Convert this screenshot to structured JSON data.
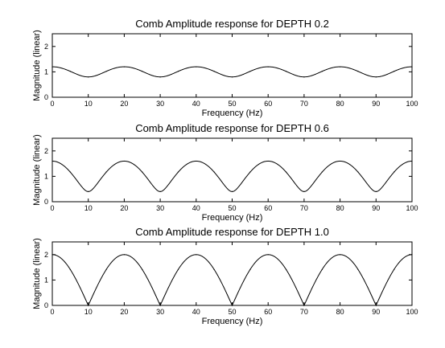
{
  "chart_data": [
    {
      "type": "line",
      "title": "Comb Amplitude response for DEPTH 0.2",
      "xlabel": "Frequency (Hz)",
      "ylabel": "Magnitude (linear)",
      "depth": 0.2,
      "xlim": [
        0,
        100
      ],
      "ylim": [
        0,
        2.5
      ],
      "x_ticks": [
        "0",
        "10",
        "20",
        "30",
        "40",
        "50",
        "60",
        "70",
        "80",
        "90",
        "100"
      ],
      "y_ticks": [
        "0",
        "1",
        "2"
      ],
      "grid": false,
      "line_color": "#000000",
      "series": [
        {
          "x": [
            0,
            5,
            10,
            15,
            20,
            25,
            30,
            35,
            40,
            45,
            50,
            55,
            60,
            65,
            70,
            75,
            80,
            85,
            90,
            95,
            100
          ],
          "values": [
            1.2,
            1.02,
            0.8,
            1.02,
            1.2,
            1.02,
            0.8,
            1.02,
            1.2,
            1.02,
            0.8,
            1.02,
            1.2,
            1.02,
            0.8,
            1.02,
            1.2,
            1.02,
            0.8,
            1.02,
            1.2
          ]
        }
      ]
    },
    {
      "type": "line",
      "title": "Comb Amplitude response for DEPTH 0.6",
      "xlabel": "Frequency (Hz)",
      "ylabel": "Magnitude (linear)",
      "depth": 0.6,
      "xlim": [
        0,
        100
      ],
      "ylim": [
        0,
        2.5
      ],
      "x_ticks": [
        "0",
        "10",
        "20",
        "30",
        "40",
        "50",
        "60",
        "70",
        "80",
        "90",
        "100"
      ],
      "y_ticks": [
        "0",
        "1",
        "2"
      ],
      "grid": false,
      "line_color": "#000000",
      "series": [
        {
          "x": [
            0,
            5,
            10,
            15,
            20,
            25,
            30,
            35,
            40,
            45,
            50,
            55,
            60,
            65,
            70,
            75,
            80,
            85,
            90,
            95,
            100
          ],
          "values": [
            1.6,
            1.17,
            0.4,
            1.17,
            1.6,
            1.17,
            0.4,
            1.17,
            1.6,
            1.17,
            0.4,
            1.17,
            1.6,
            1.17,
            0.4,
            1.17,
            1.6,
            1.17,
            0.4,
            1.17,
            1.6
          ]
        }
      ]
    },
    {
      "type": "line",
      "title": "Comb Amplitude response for DEPTH 1.0",
      "xlabel": "Frequency (Hz)",
      "ylabel": "Magnitude (linear)",
      "depth": 1.0,
      "xlim": [
        0,
        100
      ],
      "ylim": [
        0,
        2.5
      ],
      "x_ticks": [
        "0",
        "10",
        "20",
        "30",
        "40",
        "50",
        "60",
        "70",
        "80",
        "90",
        "100"
      ],
      "y_ticks": [
        "0",
        "1",
        "2"
      ],
      "grid": false,
      "line_color": "#000000",
      "series": [
        {
          "x": [
            0,
            5,
            10,
            15,
            20,
            25,
            30,
            35,
            40,
            45,
            50,
            55,
            60,
            65,
            70,
            75,
            80,
            85,
            90,
            95,
            100
          ],
          "values": [
            2.0,
            1.41,
            0.0,
            1.41,
            2.0,
            1.41,
            0.0,
            1.41,
            2.0,
            1.41,
            0.0,
            1.41,
            2.0,
            1.41,
            0.0,
            1.41,
            2.0,
            1.41,
            0.0,
            1.41,
            2.0
          ]
        }
      ]
    }
  ]
}
